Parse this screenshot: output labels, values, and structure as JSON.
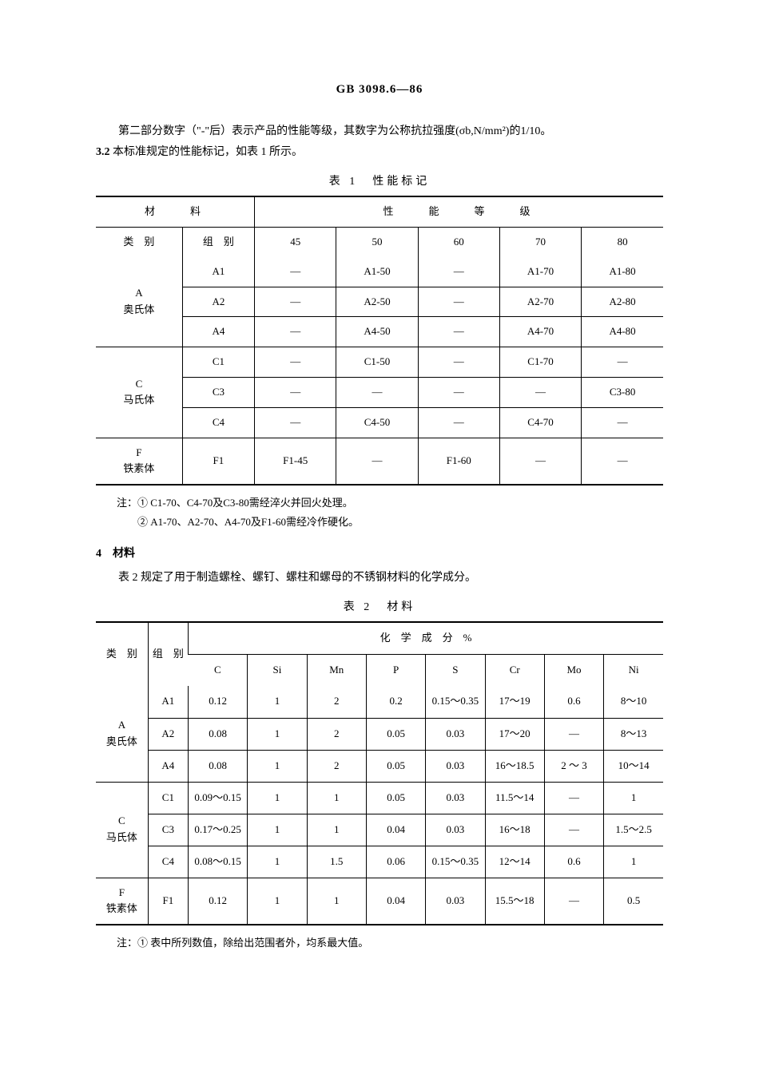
{
  "header": {
    "doc_code": "GB 3098.6—86"
  },
  "intro": {
    "line1": "第二部分数字（\"-\"后）表示产品的性能等级，其数字为公称抗拉强度(σb,N/mm²)的1/10。",
    "line2_label": "3.2",
    "line2_text": "本标准规定的性能标记，如表 1 所示。"
  },
  "table1": {
    "title": "表 1　性能标记",
    "head": {
      "material": "材　　料",
      "perf_grade": "性　　能　　等　　级",
      "category": "类　别",
      "group": "组　别",
      "cols": [
        "45",
        "50",
        "60",
        "70",
        "80"
      ]
    },
    "groups": [
      {
        "cat_code": "A",
        "cat_name": "奥氏体",
        "rows": [
          {
            "grp": "A1",
            "cells": [
              "—",
              "A1-50",
              "—",
              "A1-70",
              "A1-80"
            ]
          },
          {
            "grp": "A2",
            "cells": [
              "—",
              "A2-50",
              "—",
              "A2-70",
              "A2-80"
            ]
          },
          {
            "grp": "A4",
            "cells": [
              "—",
              "A4-50",
              "—",
              "A4-70",
              "A4-80"
            ]
          }
        ]
      },
      {
        "cat_code": "C",
        "cat_name": "马氏体",
        "rows": [
          {
            "grp": "C1",
            "cells": [
              "—",
              "C1-50",
              "—",
              "C1-70",
              "—"
            ]
          },
          {
            "grp": "C3",
            "cells": [
              "—",
              "—",
              "—",
              "—",
              "C3-80"
            ]
          },
          {
            "grp": "C4",
            "cells": [
              "—",
              "C4-50",
              "—",
              "C4-70",
              "—"
            ]
          }
        ]
      },
      {
        "cat_code": "F",
        "cat_name": "铁素体",
        "rows": [
          {
            "grp": "F1",
            "cells": [
              "F1-45",
              "—",
              "F1-60",
              "—",
              "—"
            ]
          }
        ]
      }
    ],
    "notes": {
      "label": "注：",
      "n1": "① C1-70、C4-70及C3-80需经淬火并回火处理。",
      "n2": "② A1-70、A2-70、A4-70及F1-60需经冷作硬化。"
    }
  },
  "section4": {
    "title": "4　材料",
    "para": "表 2 规定了用于制造螺栓、螺钉、螺柱和螺母的不锈钢材料的化学成分。"
  },
  "table2": {
    "title": "表 2　材料",
    "head": {
      "category": "类　别",
      "group": "组　别",
      "chem": "化　学　成　分　%",
      "cols": [
        "C",
        "Si",
        "Mn",
        "P",
        "S",
        "Cr",
        "Mo",
        "Ni"
      ]
    },
    "groups": [
      {
        "cat_code": "A",
        "cat_name": "奥氏体",
        "rows": [
          {
            "grp": "A1",
            "cells": [
              "0.12",
              "1",
              "2",
              "0.2",
              "0.15～0.35",
              "17～19",
              "0.6",
              "8～10"
            ]
          },
          {
            "grp": "A2",
            "cells": [
              "0.08",
              "1",
              "2",
              "0.05",
              "0.03",
              "17～20",
              "—",
              "8～13"
            ]
          },
          {
            "grp": "A4",
            "cells": [
              "0.08",
              "1",
              "2",
              "0.05",
              "0.03",
              "16～18.5",
              "2 ～ 3",
              "10～14"
            ]
          }
        ]
      },
      {
        "cat_code": "C",
        "cat_name": "马氏体",
        "rows": [
          {
            "grp": "C1",
            "cells": [
              "0.09～0.15",
              "1",
              "1",
              "0.05",
              "0.03",
              "11.5～14",
              "—",
              "1"
            ]
          },
          {
            "grp": "C3",
            "cells": [
              "0.17～0.25",
              "1",
              "1",
              "0.04",
              "0.03",
              "16～18",
              "—",
              "1.5～2.5"
            ]
          },
          {
            "grp": "C4",
            "cells": [
              "0.08～0.15",
              "1",
              "1.5",
              "0.06",
              "0.15～0.35",
              "12～14",
              "0.6",
              "1"
            ]
          }
        ]
      },
      {
        "cat_code": "F",
        "cat_name": "铁素体",
        "rows": [
          {
            "grp": "F1",
            "cells": [
              "0.12",
              "1",
              "1",
              "0.04",
              "0.03",
              "15.5～18",
              "—",
              "0.5"
            ]
          }
        ]
      }
    ],
    "notes": {
      "label": "注：",
      "n1": "① 表中所列数值，除给出范围者外，均系最大值。"
    }
  }
}
